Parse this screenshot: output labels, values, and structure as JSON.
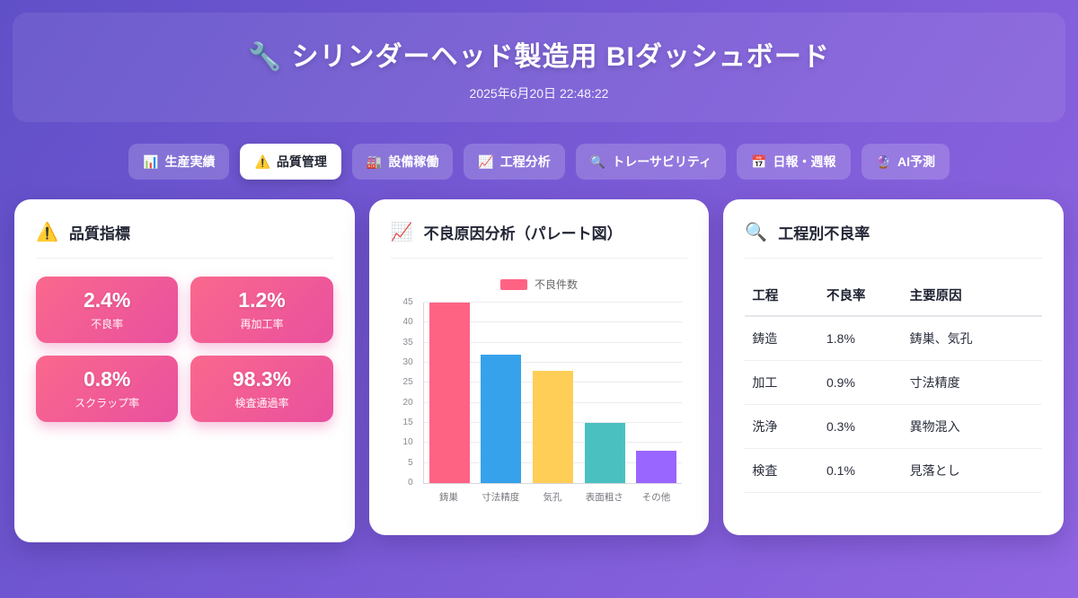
{
  "header": {
    "icon": "🔧",
    "title": "シリンダーヘッド製造用 BIダッシュボード",
    "datetime": "2025年6月20日 22:48:22"
  },
  "tabs": [
    {
      "icon": "📊",
      "label": "生産実績"
    },
    {
      "icon": "⚠️",
      "label": "品質管理"
    },
    {
      "icon": "🏭",
      "label": "設備稼働"
    },
    {
      "icon": "📈",
      "label": "工程分析"
    },
    {
      "icon": "🔍",
      "label": "トレーサビリティ"
    },
    {
      "icon": "📅",
      "label": "日報・週報"
    },
    {
      "icon": "🔮",
      "label": "AI予測"
    }
  ],
  "quality_card": {
    "icon": "⚠️",
    "title": "品質指標",
    "metrics": [
      {
        "value": "2.4%",
        "label": "不良率"
      },
      {
        "value": "1.2%",
        "label": "再加工率"
      },
      {
        "value": "0.8%",
        "label": "スクラップ率"
      },
      {
        "value": "98.3%",
        "label": "検査通過率"
      }
    ]
  },
  "pareto_card": {
    "icon": "📈",
    "title": "不良原因分析（パレート図）"
  },
  "chart_data": {
    "type": "bar",
    "title": "不良原因分析（パレート図）",
    "legend": "不良件数",
    "categories": [
      "鋳巣",
      "寸法精度",
      "気孔",
      "表面粗さ",
      "その他"
    ],
    "values": [
      45,
      32,
      28,
      15,
      8
    ],
    "colors": [
      "#ff6384",
      "#36a2eb",
      "#ffce56",
      "#4bc0c0",
      "#9966ff"
    ],
    "xlabel": "",
    "ylabel": "",
    "ylim": [
      0,
      45
    ],
    "ytick_step": 5,
    "grid": "horizontal",
    "legend_position": "top"
  },
  "process_card": {
    "icon": "🔍",
    "title": "工程別不良率",
    "columns": [
      "工程",
      "不良率",
      "主要原因"
    ],
    "rows": [
      [
        "鋳造",
        "1.8%",
        "鋳巣、気孔"
      ],
      [
        "加工",
        "0.9%",
        "寸法精度"
      ],
      [
        "洗浄",
        "0.3%",
        "異物混入"
      ],
      [
        "検査",
        "0.1%",
        "見落とし"
      ]
    ]
  }
}
